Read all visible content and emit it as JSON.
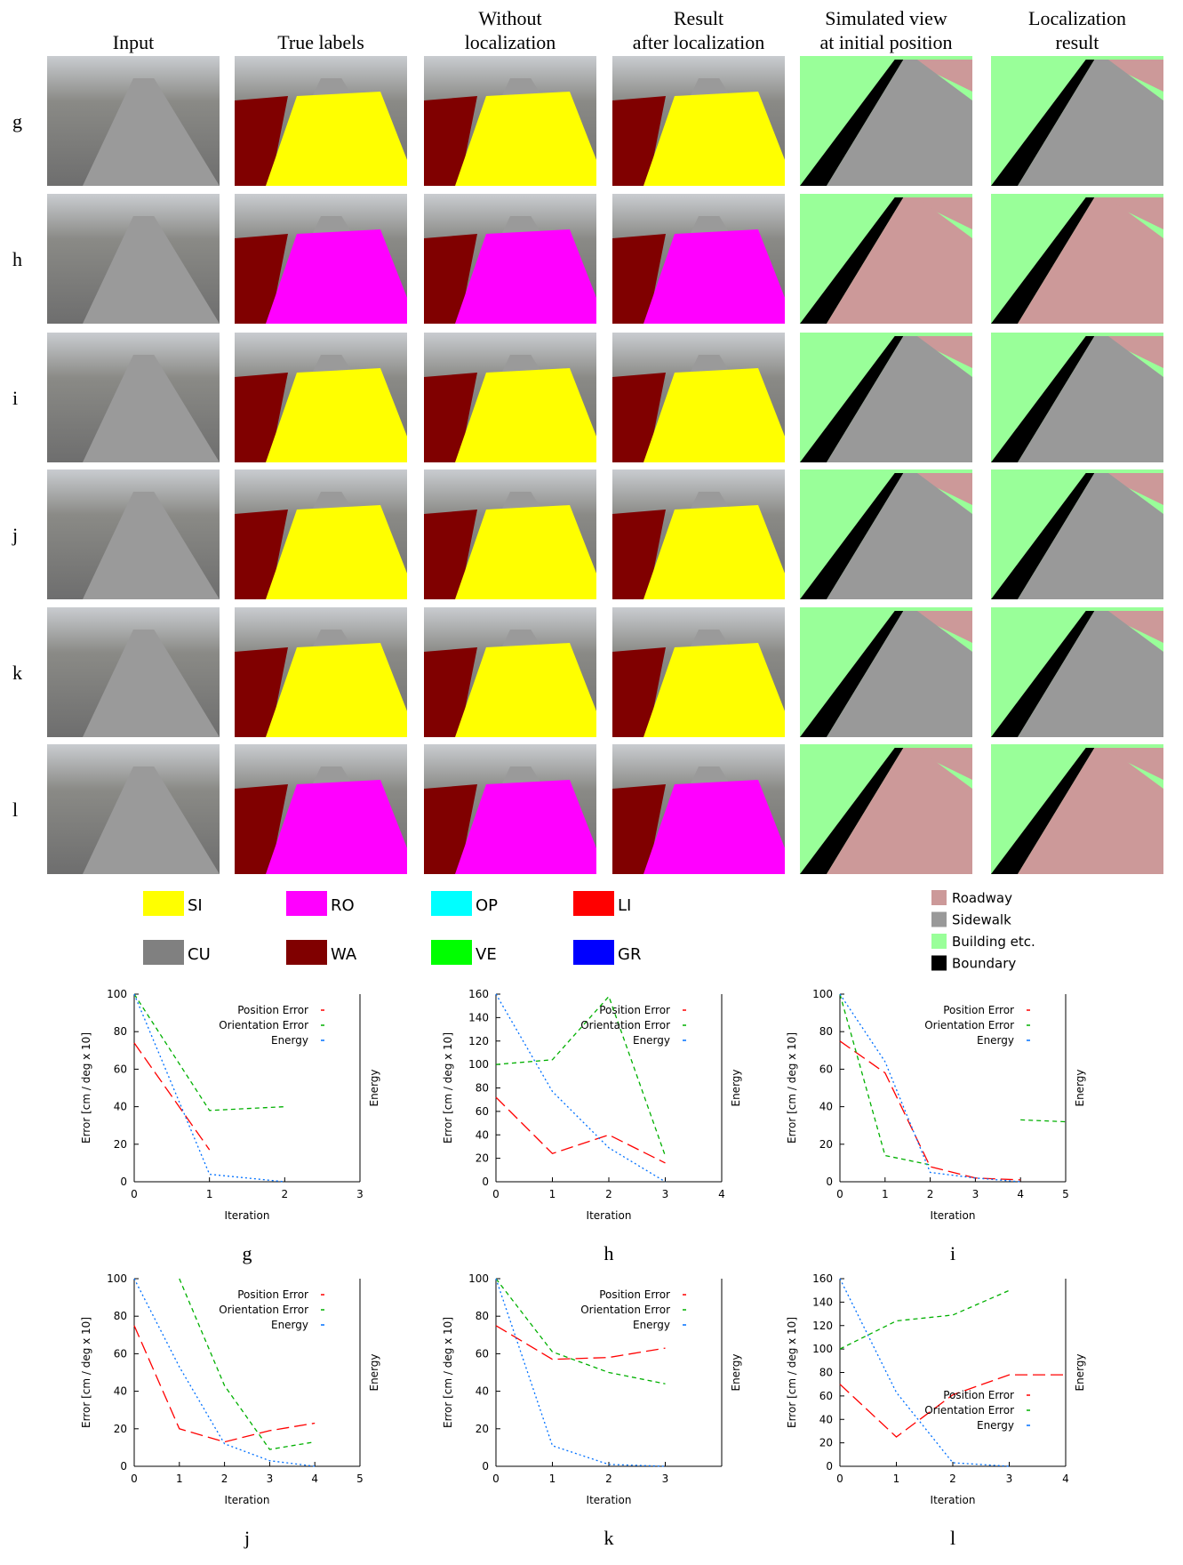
{
  "headers": [
    "Input",
    "True labels",
    "Without localization",
    "Result after localization",
    "Simulated view at initial position",
    "Localization result"
  ],
  "rows": [
    "g",
    "h",
    "i",
    "j",
    "k",
    "l"
  ],
  "class_legend": [
    {
      "label": "SI",
      "color": "#ffff00"
    },
    {
      "label": "RO",
      "color": "#ff00ff"
    },
    {
      "label": "OP",
      "color": "#00ffff"
    },
    {
      "label": "LI",
      "color": "#ff0000"
    },
    {
      "label": "CU",
      "color": "#808080"
    },
    {
      "label": "WA",
      "color": "#800000"
    },
    {
      "label": "VE",
      "color": "#00ff00"
    },
    {
      "label": "GR",
      "color": "#0000ff"
    }
  ],
  "map_legend": [
    {
      "label": "Roadway",
      "color": "#cc9999"
    },
    {
      "label": "Sidewalk",
      "color": "#999999"
    },
    {
      "label": "Building etc.",
      "color": "#99ff99"
    },
    {
      "label": "Boundary",
      "color": "#000000"
    }
  ],
  "chart_data": [
    {
      "type": "line",
      "title": "g",
      "xlabel": "Iteration",
      "ylabel": "Error [cm / deg x 10]",
      "y2label": "Energy",
      "legend": "upper right",
      "x": [
        0,
        1,
        2
      ],
      "xlim": [
        0,
        3
      ],
      "xticks": [
        0,
        1,
        2,
        3
      ],
      "ylim": [
        0,
        100
      ],
      "yticks": [
        0,
        20,
        40,
        60,
        80,
        100
      ],
      "series": [
        {
          "name": "Position Error",
          "color": "#ff0000",
          "values": [
            74,
            17,
            null
          ]
        },
        {
          "name": "Orientation Error",
          "color": "#00b000",
          "values": [
            100,
            38,
            40
          ]
        },
        {
          "name": "Energy",
          "color": "#0070ff",
          "values": [
            100,
            4,
            0
          ]
        }
      ]
    },
    {
      "type": "line",
      "title": "h",
      "xlabel": "Iteration",
      "ylabel": "Error [cm / deg x 10]",
      "y2label": "Energy",
      "legend": "upper right",
      "x": [
        0,
        1,
        2,
        3
      ],
      "xlim": [
        0,
        4
      ],
      "xticks": [
        0,
        1,
        2,
        3,
        4
      ],
      "ylim": [
        0,
        160
      ],
      "yticks": [
        0,
        20,
        40,
        60,
        80,
        100,
        120,
        140,
        160
      ],
      "series": [
        {
          "name": "Position Error",
          "color": "#ff0000",
          "values": [
            72,
            24,
            40,
            16
          ]
        },
        {
          "name": "Orientation Error",
          "color": "#00b000",
          "values": [
            100,
            104,
            158,
            22
          ]
        },
        {
          "name": "Energy",
          "color": "#0070ff",
          "values": [
            160,
            77,
            29,
            0
          ]
        }
      ]
    },
    {
      "type": "line",
      "title": "i",
      "xlabel": "Iteration",
      "ylabel": "Error [cm / deg x 10]",
      "y2label": "Energy",
      "legend": "upper right",
      "x": [
        0,
        1,
        2,
        3,
        4,
        5
      ],
      "xlim": [
        0,
        5
      ],
      "xticks": [
        0,
        1,
        2,
        3,
        4,
        5
      ],
      "ylim": [
        0,
        100
      ],
      "yticks": [
        0,
        20,
        40,
        60,
        80,
        100
      ],
      "series": [
        {
          "name": "Position Error",
          "color": "#ff0000",
          "values": [
            75,
            58,
            8,
            2,
            1,
            null
          ]
        },
        {
          "name": "Orientation Error",
          "color": "#00b000",
          "values": [
            100,
            14,
            9,
            null,
            33,
            32
          ]
        },
        {
          "name": "Energy",
          "color": "#0070ff",
          "values": [
            100,
            64,
            5,
            2,
            0,
            null
          ]
        }
      ]
    },
    {
      "type": "line",
      "title": "j",
      "xlabel": "Iteration",
      "ylabel": "Error [cm / deg x 10]",
      "y2label": "Energy",
      "legend": "upper right",
      "x": [
        0,
        1,
        2,
        3,
        4
      ],
      "xlim": [
        0,
        5
      ],
      "xticks": [
        0,
        1,
        2,
        3,
        4,
        5
      ],
      "ylim": [
        0,
        100
      ],
      "yticks": [
        0,
        20,
        40,
        60,
        80,
        100
      ],
      "series": [
        {
          "name": "Position Error",
          "color": "#ff0000",
          "values": [
            75,
            20,
            13,
            19,
            23
          ]
        },
        {
          "name": "Orientation Error",
          "color": "#00b000",
          "values": [
            null,
            100,
            43,
            9,
            13
          ]
        },
        {
          "name": "Energy",
          "color": "#0070ff",
          "values": [
            100,
            53,
            12,
            3,
            0
          ]
        }
      ]
    },
    {
      "type": "line",
      "title": "k",
      "xlabel": "Iteration",
      "ylabel": "Error [cm / deg x 10]",
      "y2label": "Energy",
      "legend": "upper right",
      "x": [
        0,
        1,
        2,
        3
      ],
      "xlim": [
        0,
        4
      ],
      "xticks": [
        0,
        1,
        2,
        3
      ],
      "ylim": [
        0,
        100
      ],
      "yticks": [
        0,
        20,
        40,
        60,
        80,
        100
      ],
      "series": [
        {
          "name": "Position Error",
          "color": "#ff0000",
          "values": [
            75,
            57,
            58,
            63
          ]
        },
        {
          "name": "Orientation Error",
          "color": "#00b000",
          "values": [
            100,
            61,
            50,
            44
          ]
        },
        {
          "name": "Energy",
          "color": "#0070ff",
          "values": [
            100,
            11,
            1,
            0
          ]
        }
      ]
    },
    {
      "type": "line",
      "title": "l",
      "xlabel": "Iteration",
      "ylabel": "Error [cm / deg x 10]",
      "y2label": "Energy",
      "legend": "lower right",
      "x": [
        0,
        1,
        2,
        3,
        4
      ],
      "xlim": [
        0,
        4
      ],
      "xticks": [
        0,
        1,
        2,
        3,
        4
      ],
      "ylim": [
        0,
        160
      ],
      "yticks": [
        0,
        20,
        40,
        60,
        80,
        100,
        120,
        140,
        160
      ],
      "series": [
        {
          "name": "Position Error",
          "color": "#ff0000",
          "values": [
            70,
            25,
            61,
            78,
            78
          ]
        },
        {
          "name": "Orientation Error",
          "color": "#00b000",
          "values": [
            100,
            124,
            129,
            150,
            null
          ]
        },
        {
          "name": "Energy",
          "color": "#0070ff",
          "values": [
            160,
            63,
            3,
            0,
            null
          ]
        }
      ]
    }
  ]
}
